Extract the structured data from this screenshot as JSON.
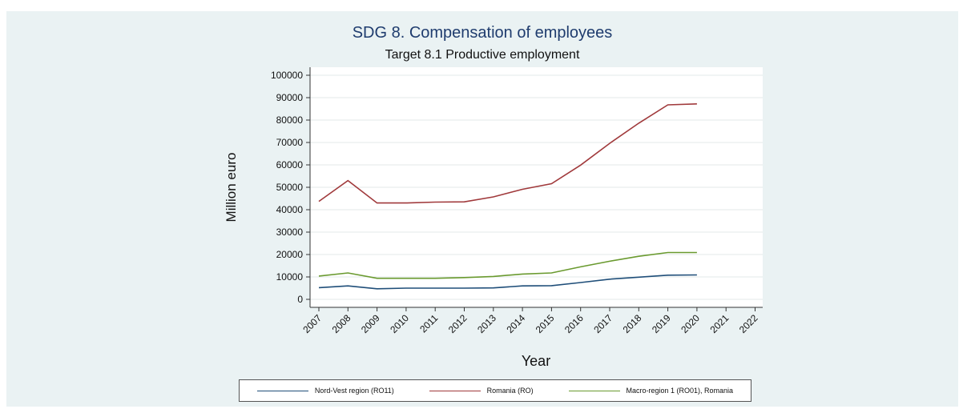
{
  "chart_data": {
    "type": "line",
    "title": "SDG 8. Compensation of employees",
    "subtitle": "Target 8.1 Productive employment",
    "xlabel": "Year",
    "ylabel": "Million euro",
    "x": [
      "2007",
      "2008",
      "2009",
      "2010",
      "2011",
      "2012",
      "2013",
      "2014",
      "2015",
      "2016",
      "2017",
      "2018",
      "2019",
      "2020",
      "2021",
      "2022"
    ],
    "ylim": [
      0,
      100000
    ],
    "yticks": [
      "0",
      "10000",
      "20000",
      "30000",
      "40000",
      "50000",
      "60000",
      "70000",
      "80000",
      "90000",
      "100000"
    ],
    "grid": true,
    "legend_position": "bottom",
    "series": [
      {
        "name": "Nord-Vest region (RO11)",
        "color": "#1f4e79",
        "values": [
          5200,
          6000,
          4700,
          5000,
          5000,
          5000,
          5100,
          6000,
          6100,
          7500,
          9000,
          9900,
          10800,
          10900,
          null,
          null
        ]
      },
      {
        "name": "Romania (RO)",
        "color": "#a0393b",
        "values": [
          43700,
          53000,
          43000,
          43000,
          43400,
          43500,
          45700,
          49100,
          51600,
          59900,
          69600,
          78600,
          86800,
          87200,
          null,
          null
        ]
      },
      {
        "name": "Macro-region 1 (RO01), Romania",
        "color": "#6a9a2f",
        "values": [
          10400,
          11800,
          9400,
          9400,
          9400,
          9700,
          10200,
          11300,
          11800,
          14500,
          17000,
          19200,
          20900,
          20900,
          null,
          null
        ]
      }
    ]
  }
}
